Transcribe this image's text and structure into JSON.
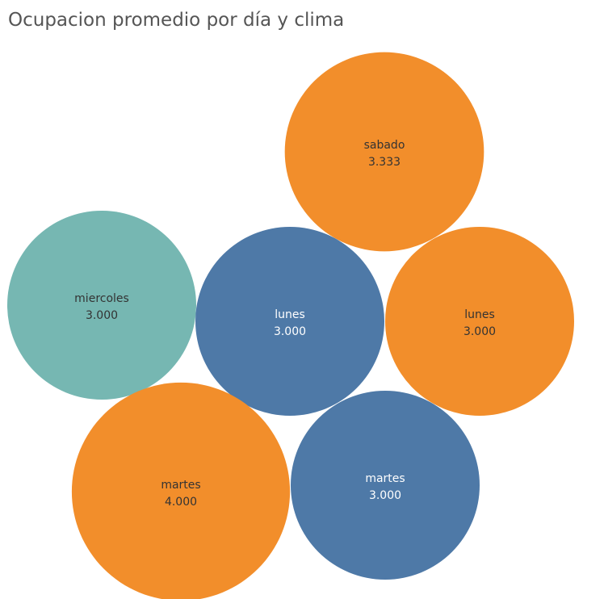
{
  "chart_data": {
    "type": "bubble",
    "title": "Ocupacion promedio por día y clima",
    "categories": [
      "sabado",
      "miercoles",
      "lunes",
      "lunes",
      "martes",
      "martes"
    ],
    "bubbles": [
      {
        "label": "sabado",
        "value": 3.333,
        "value_text": "3.333",
        "color": "#F28E2B"
      },
      {
        "label": "miercoles",
        "value": 3.0,
        "value_text": "3.000",
        "color": "#76B7B2"
      },
      {
        "label": "lunes",
        "value": 3.0,
        "value_text": "3.000",
        "color": "#4E79A7"
      },
      {
        "label": "lunes",
        "value": 3.0,
        "value_text": "3.000",
        "color": "#F28E2B"
      },
      {
        "label": "martes",
        "value": 4.0,
        "value_text": "4.000",
        "color": "#F28E2B"
      },
      {
        "label": "martes",
        "value": 3.0,
        "value_text": "3.000",
        "color": "#4E79A7"
      }
    ]
  }
}
